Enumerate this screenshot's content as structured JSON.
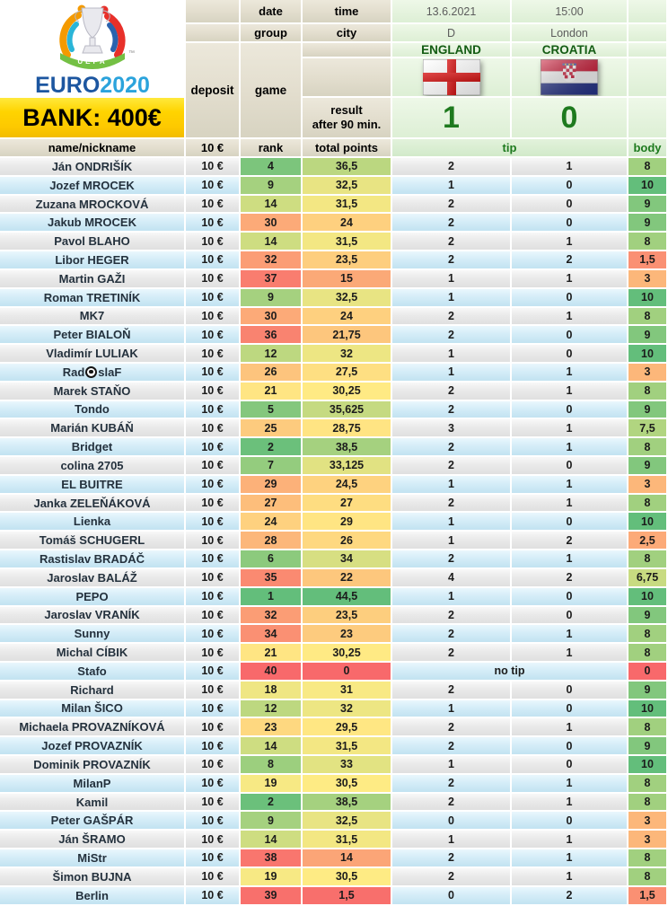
{
  "header": {
    "bank": "BANK: 400€",
    "logo": {
      "uefa": "UEFA",
      "euro": "EURO",
      "year": "2020",
      "tm": "™"
    },
    "labels": {
      "date": "date",
      "time": "time",
      "group": "group",
      "city": "city",
      "deposit": "deposit",
      "game": "game",
      "result_line1": "result",
      "result_line2": "after 90 min."
    },
    "match": {
      "date": "13.6.2021",
      "time": "15:00",
      "group": "D",
      "city": "London",
      "home_team": "ENGLAND",
      "away_team": "CROATIA",
      "home_score": "1",
      "away_score": "0"
    }
  },
  "columns": {
    "name": "name/nickname",
    "deposit": "10 €",
    "rank": "rank",
    "points": "total points",
    "tip": "tip",
    "body": "body"
  },
  "colors": {
    "scale_red": "#F8696B",
    "scale_yellow": "#FFEB84",
    "scale_green": "#63BE7B",
    "bank_yellow": "#FFD400",
    "accent_green": "#1E7A1F",
    "team_green": "#135C13"
  },
  "scales": {
    "rank": {
      "stops": [
        1,
        20,
        40
      ],
      "colors": [
        "#63BE7B",
        "#FFEB84",
        "#F8696B"
      ]
    },
    "points": {
      "stops": [
        0,
        30.375,
        44.5
      ],
      "colors": [
        "#F8696B",
        "#FFEB84",
        "#63BE7B"
      ]
    },
    "body": {
      "stops": [
        0,
        5,
        10
      ],
      "colors": [
        "#F8696B",
        "#FFEB84",
        "#63BE7B"
      ]
    }
  },
  "no_tip_label": "no tip",
  "rows": [
    {
      "name": "Ján ONDRIŠÍK",
      "dep": "10 €",
      "rank": 4,
      "pts": "36,5",
      "t1": "2",
      "t2": "1",
      "body": "8"
    },
    {
      "name": "Jozef MROCEK",
      "dep": "10 €",
      "rank": 9,
      "pts": "32,5",
      "t1": "1",
      "t2": "0",
      "body": "10"
    },
    {
      "name": "Zuzana MROCKOVÁ",
      "dep": "10 €",
      "rank": 14,
      "pts": "31,5",
      "t1": "2",
      "t2": "0",
      "body": "9"
    },
    {
      "name": "Jakub MROCEK",
      "dep": "10 €",
      "rank": 30,
      "pts": "24",
      "t1": "2",
      "t2": "0",
      "body": "9"
    },
    {
      "name": "Pavol BLAHO",
      "dep": "10 €",
      "rank": 14,
      "pts": "31,5",
      "t1": "2",
      "t2": "1",
      "body": "8"
    },
    {
      "name": "Libor HEGER",
      "dep": "10 €",
      "rank": 32,
      "pts": "23,5",
      "t1": "2",
      "t2": "2",
      "body": "1,5"
    },
    {
      "name": "Martin GAŽI",
      "dep": "10 €",
      "rank": 37,
      "pts": "15",
      "t1": "1",
      "t2": "1",
      "body": "3"
    },
    {
      "name": "Roman TRETINÍK",
      "dep": "10 €",
      "rank": 9,
      "pts": "32,5",
      "t1": "1",
      "t2": "0",
      "body": "10"
    },
    {
      "name": "MK7",
      "dep": "10 €",
      "rank": 30,
      "pts": "24",
      "t1": "2",
      "t2": "1",
      "body": "8"
    },
    {
      "name": "Peter BIALOŇ",
      "dep": "10 €",
      "rank": 36,
      "pts": "21,75",
      "t1": "2",
      "t2": "0",
      "body": "9"
    },
    {
      "name": "Vladimír LULIAK",
      "dep": "10 €",
      "rank": 12,
      "pts": "32",
      "t1": "1",
      "t2": "0",
      "body": "10"
    },
    {
      "name": "Rad⚽slaF",
      "dep": "10 €",
      "rank": 26,
      "pts": "27,5",
      "t1": "1",
      "t2": "1",
      "body": "3"
    },
    {
      "name": "Marek STAŇO",
      "dep": "10 €",
      "rank": 21,
      "pts": "30,25",
      "t1": "2",
      "t2": "1",
      "body": "8"
    },
    {
      "name": "Tondo",
      "dep": "10 €",
      "rank": 5,
      "pts": "35,625",
      "t1": "2",
      "t2": "0",
      "body": "9"
    },
    {
      "name": "Marián KUBÁŇ",
      "dep": "10 €",
      "rank": 25,
      "pts": "28,75",
      "t1": "3",
      "t2": "1",
      "body": "7,5"
    },
    {
      "name": "Bridget",
      "dep": "10 €",
      "rank": 2,
      "pts": "38,5",
      "t1": "2",
      "t2": "1",
      "body": "8"
    },
    {
      "name": "colina 2705",
      "dep": "10 €",
      "rank": 7,
      "pts": "33,125",
      "t1": "2",
      "t2": "0",
      "body": "9"
    },
    {
      "name": "EL BUITRE",
      "dep": "10 €",
      "rank": 29,
      "pts": "24,5",
      "t1": "1",
      "t2": "1",
      "body": "3"
    },
    {
      "name": "Janka ZELEŇÁKOVÁ",
      "dep": "10 €",
      "rank": 27,
      "pts": "27",
      "t1": "2",
      "t2": "1",
      "body": "8"
    },
    {
      "name": "Lienka",
      "dep": "10 €",
      "rank": 24,
      "pts": "29",
      "t1": "1",
      "t2": "0",
      "body": "10"
    },
    {
      "name": "Tomáš SCHUGERL",
      "dep": "10 €",
      "rank": 28,
      "pts": "26",
      "t1": "1",
      "t2": "2",
      "body": "2,5"
    },
    {
      "name": "Rastislav BRADÁČ",
      "dep": "10 €",
      "rank": 6,
      "pts": "34",
      "t1": "2",
      "t2": "1",
      "body": "8"
    },
    {
      "name": "Jaroslav BALÁŽ",
      "dep": "10 €",
      "rank": 35,
      "pts": "22",
      "t1": "4",
      "t2": "2",
      "body": "6,75"
    },
    {
      "name": "PEPO",
      "dep": "10 €",
      "rank": 1,
      "pts": "44,5",
      "t1": "1",
      "t2": "0",
      "body": "10"
    },
    {
      "name": "Jaroslav VRANÍK",
      "dep": "10 €",
      "rank": 32,
      "pts": "23,5",
      "t1": "2",
      "t2": "0",
      "body": "9"
    },
    {
      "name": "Sunny",
      "dep": "10 €",
      "rank": 34,
      "pts": "23",
      "t1": "2",
      "t2": "1",
      "body": "8"
    },
    {
      "name": "Michal CÍBIK",
      "dep": "10 €",
      "rank": 21,
      "pts": "30,25",
      "t1": "2",
      "t2": "1",
      "body": "8"
    },
    {
      "name": "Stafo",
      "dep": "10 €",
      "rank": 40,
      "pts": "0",
      "tip": "no tip",
      "body": "0"
    },
    {
      "name": "Richard",
      "dep": "10 €",
      "rank": 18,
      "pts": "31",
      "t1": "2",
      "t2": "0",
      "body": "9"
    },
    {
      "name": "Milan ŠICO",
      "dep": "10 €",
      "rank": 12,
      "pts": "32",
      "t1": "1",
      "t2": "0",
      "body": "10"
    },
    {
      "name": "Michaela PROVAZNÍKOVÁ",
      "dep": "10 €",
      "rank": 23,
      "pts": "29,5",
      "t1": "2",
      "t2": "1",
      "body": "8"
    },
    {
      "name": "Jozef PROVAZNÍK",
      "dep": "10 €",
      "rank": 14,
      "pts": "31,5",
      "t1": "2",
      "t2": "0",
      "body": "9"
    },
    {
      "name": "Dominik PROVAZNÍK",
      "dep": "10 €",
      "rank": 8,
      "pts": "33",
      "t1": "1",
      "t2": "0",
      "body": "10"
    },
    {
      "name": "MilanP",
      "dep": "10 €",
      "rank": 19,
      "pts": "30,5",
      "t1": "2",
      "t2": "1",
      "body": "8"
    },
    {
      "name": "Kamil",
      "dep": "10 €",
      "rank": 2,
      "pts": "38,5",
      "t1": "2",
      "t2": "1",
      "body": "8"
    },
    {
      "name": "Peter GAŠPÁR",
      "dep": "10 €",
      "rank": 9,
      "pts": "32,5",
      "t1": "0",
      "t2": "0",
      "body": "3"
    },
    {
      "name": "Ján ŠRAMO",
      "dep": "10 €",
      "rank": 14,
      "pts": "31,5",
      "t1": "1",
      "t2": "1",
      "body": "3"
    },
    {
      "name": "MiStr",
      "dep": "10 €",
      "rank": 38,
      "pts": "14",
      "t1": "2",
      "t2": "1",
      "body": "8"
    },
    {
      "name": "Šimon BUJNA",
      "dep": "10 €",
      "rank": 19,
      "pts": "30,5",
      "t1": "2",
      "t2": "1",
      "body": "8"
    },
    {
      "name": "Berlin",
      "dep": "10 €",
      "rank": 39,
      "pts": "1,5",
      "t1": "0",
      "t2": "2",
      "body": "1,5"
    }
  ]
}
